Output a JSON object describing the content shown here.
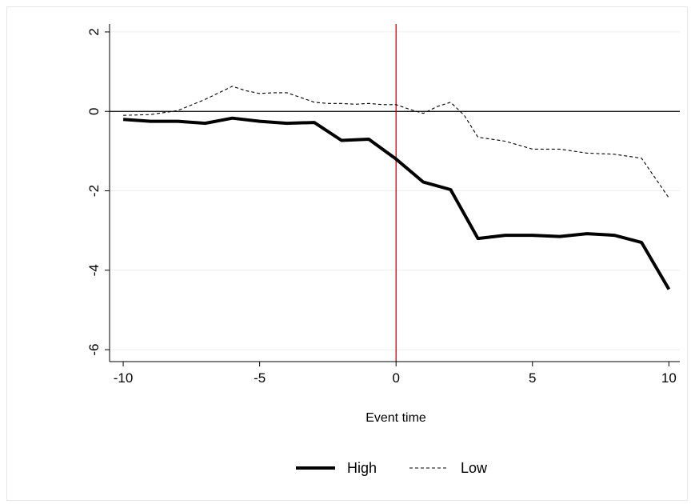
{
  "chart_data": {
    "type": "line",
    "title": "",
    "xlabel": "Event time",
    "ylabel": "",
    "xlim": [
      -10.5,
      10.4
    ],
    "ylim": [
      -6.3,
      2.2
    ],
    "x_ticks": [
      -10,
      -5,
      0,
      5,
      10
    ],
    "y_ticks": [
      2,
      0,
      -2,
      -4,
      -6
    ],
    "x_tick_labels": [
      "-10",
      "-5",
      "0",
      "5",
      "10"
    ],
    "y_tick_labels": [
      "2",
      "0",
      "-2",
      "-4",
      "-6"
    ],
    "gridlines_y": [
      2,
      -2,
      -4,
      -6
    ],
    "reference_hline": 0,
    "reference_vline": 0,
    "reference_vline_color": "#cc0000",
    "legend_position": "bottom",
    "series": [
      {
        "name": "High",
        "style": "solid-thick",
        "color": "#000000",
        "x": [
          -10,
          -9,
          -8,
          -7,
          -6,
          -5,
          -4,
          -3,
          -2,
          -1,
          0,
          1,
          2,
          3,
          4,
          5,
          6,
          7,
          8,
          9,
          10
        ],
        "y": [
          -0.2,
          -0.25,
          -0.25,
          -0.3,
          -0.17,
          -0.25,
          -0.3,
          -0.28,
          -0.73,
          -0.7,
          -1.2,
          -1.78,
          -1.97,
          -3.2,
          -3.12,
          -3.12,
          -3.15,
          -3.08,
          -3.12,
          -3.3,
          -4.48
        ]
      },
      {
        "name": "Low",
        "style": "dashed",
        "color": "#000000",
        "x": [
          -10,
          -9,
          -8,
          -7,
          -6,
          -5.5,
          -5,
          -4.5,
          -4,
          -3.5,
          -3,
          -2.5,
          -2,
          -1.5,
          -1,
          -0.5,
          0,
          0.5,
          1,
          1.5,
          2,
          2.5,
          3,
          4,
          5,
          6,
          7,
          8,
          9,
          10
        ],
        "y": [
          -0.1,
          -0.08,
          0.02,
          0.3,
          0.63,
          0.52,
          0.45,
          0.47,
          0.47,
          0.35,
          0.23,
          0.2,
          0.2,
          0.18,
          0.2,
          0.17,
          0.17,
          0.05,
          -0.05,
          0.12,
          0.23,
          -0.1,
          -0.65,
          -0.75,
          -0.95,
          -0.95,
          -1.05,
          -1.08,
          -1.18,
          -2.18
        ]
      }
    ]
  }
}
